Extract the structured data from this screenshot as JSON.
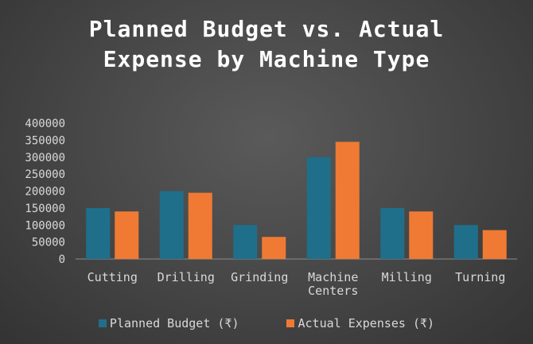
{
  "chart_data": {
    "type": "bar",
    "title": "Planned Budget vs. Actual Expense by Machine Type",
    "categories": [
      "Cutting",
      "Drilling",
      "Grinding",
      "Machine Centers",
      "Milling",
      "Turning"
    ],
    "series": [
      {
        "name": "Planned Budget (₹)",
        "color": "#1f6f8b",
        "values": [
          150000,
          200000,
          100000,
          300000,
          150000,
          100000
        ]
      },
      {
        "name": "Actual Expenses (₹)",
        "color": "#f07a33",
        "values": [
          140000,
          195000,
          65000,
          345000,
          140000,
          85000
        ]
      }
    ],
    "yticks": [
      "0",
      "50000",
      "100000",
      "150000",
      "200000",
      "250000",
      "300000",
      "350000",
      "400000"
    ],
    "ylim": [
      0,
      400000
    ],
    "grid": false,
    "legend": "bottom"
  }
}
